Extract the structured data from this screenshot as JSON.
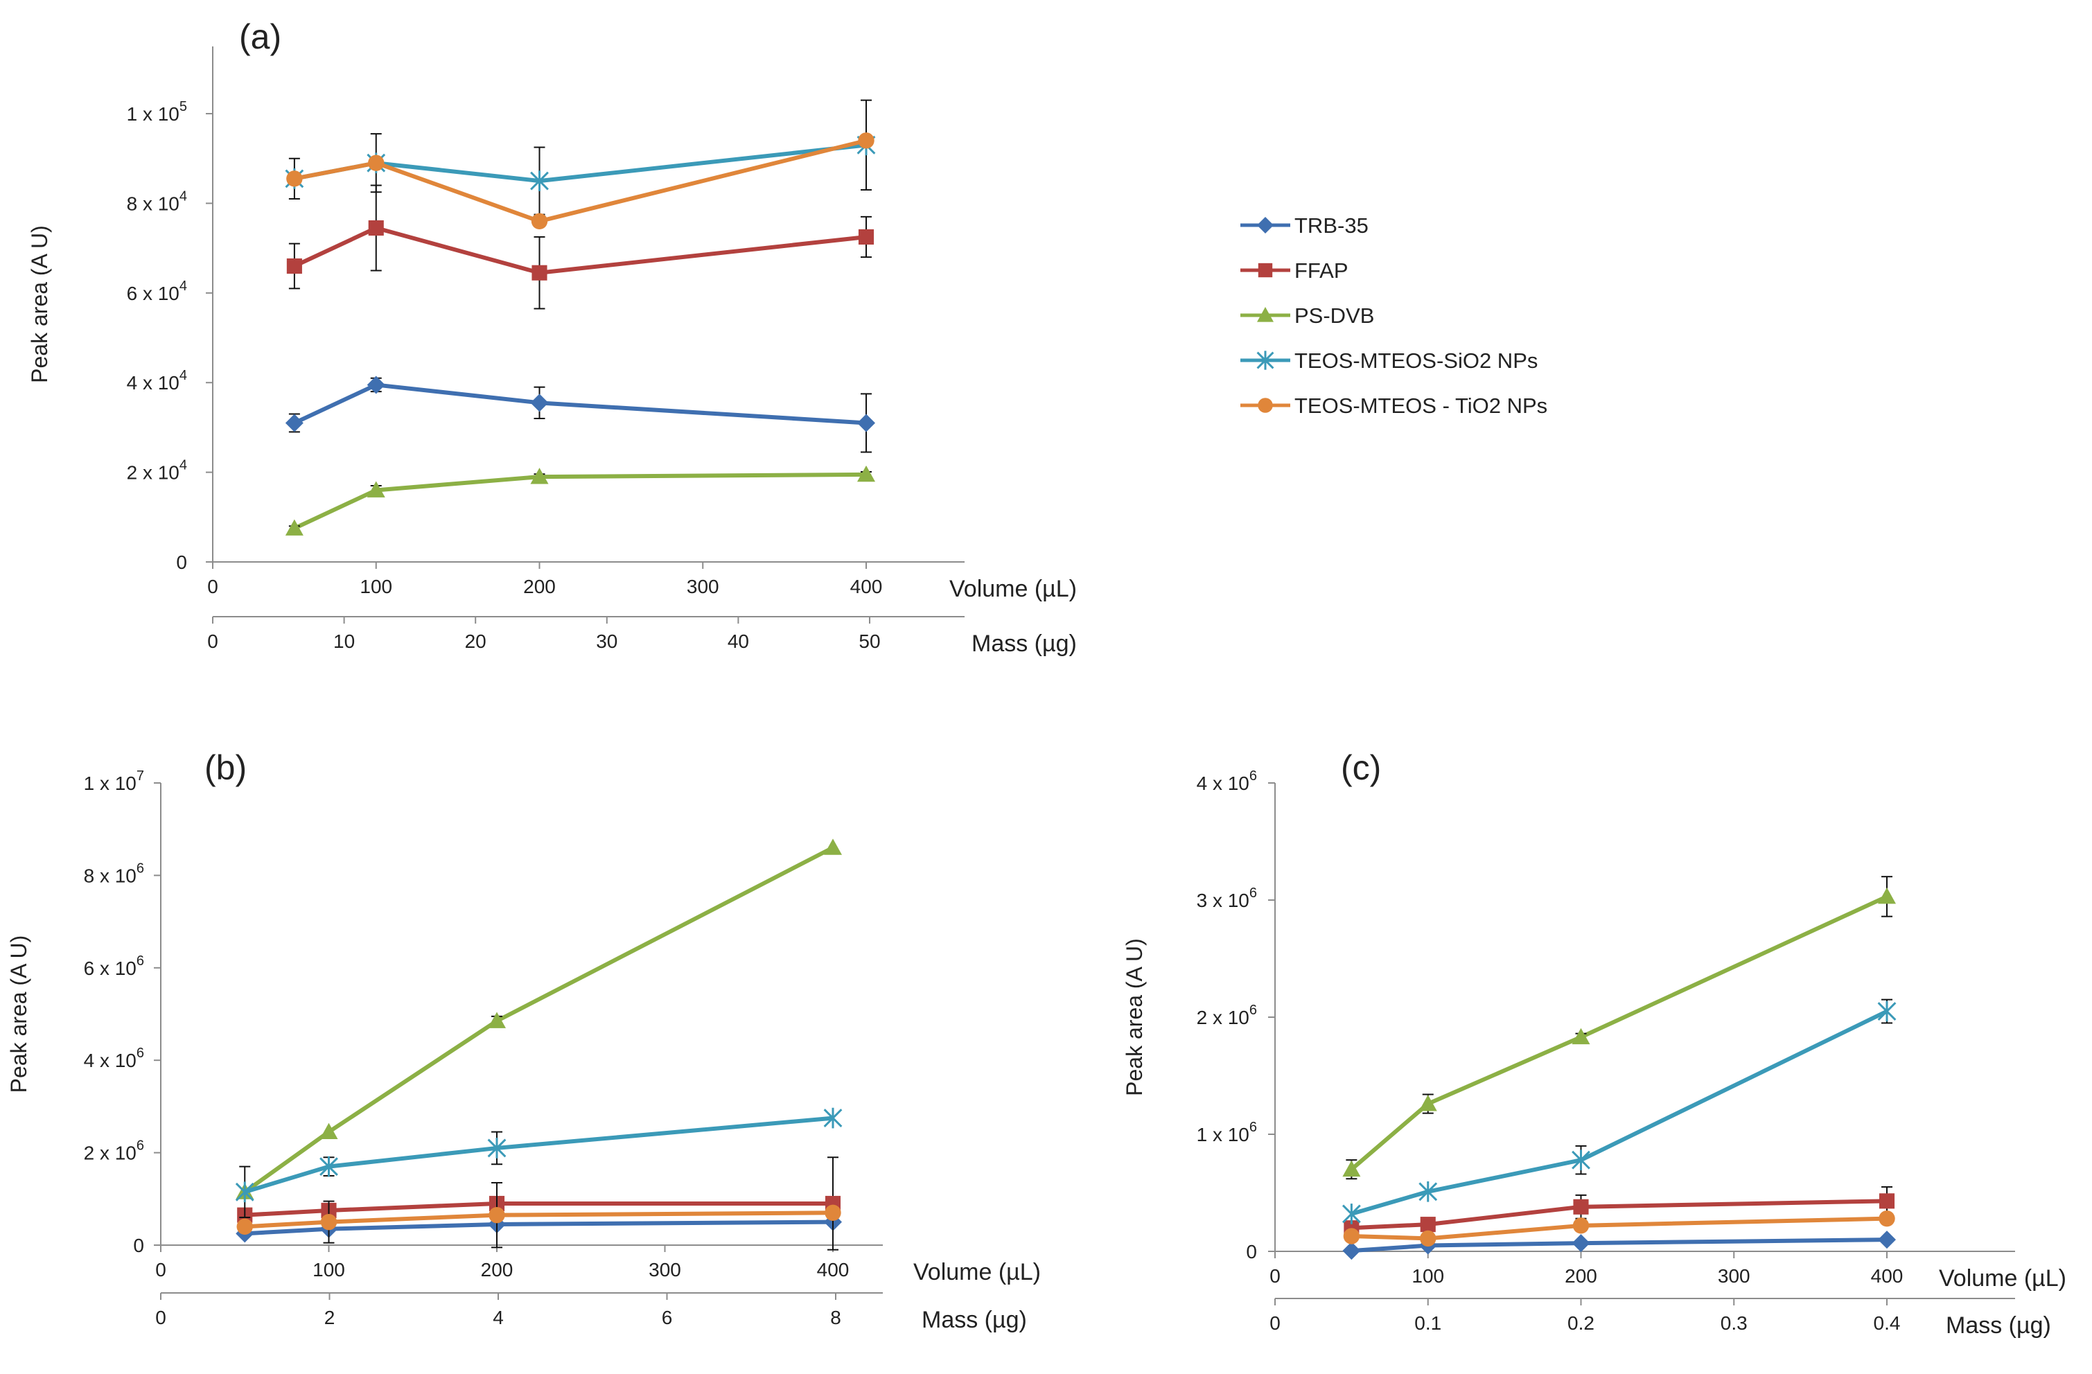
{
  "colors": {
    "TRB-35": "#3f6fb0",
    "FFAP": "#b3413e",
    "PS-DVB": "#8cb045",
    "TEOS-MTEOS-SiO2 NPs": "#3b9ab8",
    "TEOS-MTEOS - TiO2 NPs": "#e0863a"
  },
  "markers": {
    "TRB-35": "diamond",
    "FFAP": "square",
    "PS-DVB": "triangle",
    "TEOS-MTEOS-SiO2 NPs": "star",
    "TEOS-MTEOS - TiO2 NPs": "circle"
  },
  "legend": [
    "TRB-35",
    "FFAP",
    "PS-DVB",
    "TEOS-MTEOS-SiO2 NPs",
    "TEOS-MTEOS - TiO2 NPs"
  ],
  "chart_data": [
    {
      "panel": "(a)",
      "type": "line",
      "ylabel": "Peak area (A U)",
      "xlabel": "Volume (µL)",
      "x2label": "Mass (µg)",
      "xlim": [
        0,
        450
      ],
      "xticks": [
        "0",
        "100",
        "200",
        "300",
        "400"
      ],
      "x2ticks": [
        "0",
        "10",
        "20",
        "30",
        "40",
        "50"
      ],
      "ylim": [
        0,
        115000
      ],
      "yticks": [
        {
          "v": 0,
          "base": "0",
          "exp": ""
        },
        {
          "v": 20000,
          "base": "2 x 10",
          "exp": "4"
        },
        {
          "v": 40000,
          "base": "4 x 10",
          "exp": "4"
        },
        {
          "v": 60000,
          "base": "6 x 10",
          "exp": "4"
        },
        {
          "v": 80000,
          "base": "8 x 10",
          "exp": "4"
        },
        {
          "v": 100000,
          "base": "1 x 10",
          "exp": "5"
        }
      ],
      "x": [
        50,
        100,
        200,
        400
      ],
      "series": [
        {
          "name": "TRB-35",
          "values": [
            31000,
            39500,
            35500,
            31000
          ],
          "errors": [
            2000,
            1500,
            3500,
            6500
          ]
        },
        {
          "name": "FFAP",
          "values": [
            66000,
            74500,
            64500,
            72500
          ],
          "errors": [
            5000,
            9500,
            8000,
            4500
          ]
        },
        {
          "name": "PS-DVB",
          "values": [
            7500,
            16000,
            19000,
            19500
          ],
          "errors": [
            500,
            1000,
            600,
            600
          ]
        },
        {
          "name": "TEOS-MTEOS-SiO2 NPs",
          "values": [
            85500,
            89000,
            85000,
            93000
          ],
          "errors": [
            4500,
            6500,
            7500,
            10000
          ]
        },
        {
          "name": "TEOS-MTEOS - TiO2 NPs",
          "values": [
            85500,
            89000,
            76000,
            94000
          ],
          "errors": [
            0,
            0,
            0,
            0
          ]
        }
      ]
    },
    {
      "panel": "(b)",
      "type": "line",
      "ylabel": "Peak area (A U)",
      "xlabel": "Volume (µL)",
      "x2label": "Mass (µg)",
      "xlim": [
        0,
        450
      ],
      "xticks": [
        "0",
        "100",
        "200",
        "300",
        "400"
      ],
      "x2ticks": [
        "0",
        "2",
        "4",
        "6",
        "8"
      ],
      "ylim": [
        0,
        10000000
      ],
      "yticks": [
        {
          "v": 0,
          "base": "0",
          "exp": ""
        },
        {
          "v": 2000000,
          "base": "2 x 10",
          "exp": "6"
        },
        {
          "v": 4000000,
          "base": "4 x 10",
          "exp": "6"
        },
        {
          "v": 6000000,
          "base": "6 x 10",
          "exp": "6"
        },
        {
          "v": 8000000,
          "base": "8 x 10",
          "exp": "6"
        },
        {
          "v": 10000000,
          "base": "1 x 10",
          "exp": "7"
        }
      ],
      "x": [
        50,
        100,
        200,
        400
      ],
      "series": [
        {
          "name": "TRB-35",
          "values": [
            250000,
            350000,
            450000,
            500000
          ],
          "errors": [
            0,
            0,
            0,
            0
          ]
        },
        {
          "name": "FFAP",
          "values": [
            650000,
            750000,
            900000,
            900000
          ],
          "errors": [
            0,
            0,
            0,
            1000000
          ]
        },
        {
          "name": "PS-DVB",
          "values": [
            1150000,
            2450000,
            4850000,
            8600000
          ],
          "errors": [
            0,
            0,
            100000,
            0
          ]
        },
        {
          "name": "TEOS-MTEOS-SiO2 NPs",
          "values": [
            1150000,
            1700000,
            2100000,
            2750000
          ],
          "errors": [
            550000,
            200000,
            350000,
            0
          ]
        },
        {
          "name": "TEOS-MTEOS - TiO2 NPs",
          "values": [
            400000,
            500000,
            650000,
            700000
          ],
          "errors": [
            0,
            450000,
            700000,
            0
          ]
        }
      ]
    },
    {
      "panel": "(c)",
      "type": "line",
      "ylabel": "Peak area (A U)",
      "xlabel": "Volume (µL)",
      "x2label": "Mass (µg)",
      "xlim": [
        0,
        450
      ],
      "xticks": [
        "0",
        "100",
        "200",
        "300",
        "400"
      ],
      "x2ticks": [
        "0",
        "0.1",
        "0.2",
        "0.3",
        "0.4"
      ],
      "ylim": [
        0,
        4000000
      ],
      "yticks": [
        {
          "v": 0,
          "base": "0",
          "exp": ""
        },
        {
          "v": 1000000,
          "base": "1 x 10",
          "exp": "6"
        },
        {
          "v": 2000000,
          "base": "2 x 10",
          "exp": "6"
        },
        {
          "v": 3000000,
          "base": "3 x 10",
          "exp": "6"
        },
        {
          "v": 4000000,
          "base": "4 x 10",
          "exp": "6"
        }
      ],
      "x": [
        50,
        100,
        200,
        400
      ],
      "series": [
        {
          "name": "TRB-35",
          "values": [
            5000,
            50000,
            70000,
            100000
          ],
          "errors": [
            0,
            0,
            0,
            0
          ]
        },
        {
          "name": "FFAP",
          "values": [
            200000,
            230000,
            380000,
            430000
          ],
          "errors": [
            0,
            0,
            100000,
            120000
          ]
        },
        {
          "name": "PS-DVB",
          "values": [
            700000,
            1260000,
            1830000,
            3030000
          ],
          "errors": [
            80000,
            80000,
            30000,
            170000
          ]
        },
        {
          "name": "TEOS-MTEOS-SiO2 NPs",
          "values": [
            320000,
            510000,
            780000,
            2050000
          ],
          "errors": [
            0,
            0,
            120000,
            100000
          ]
        },
        {
          "name": "TEOS-MTEOS - TiO2 NPs",
          "values": [
            130000,
            110000,
            220000,
            280000
          ],
          "errors": [
            0,
            0,
            0,
            0
          ]
        }
      ]
    }
  ]
}
